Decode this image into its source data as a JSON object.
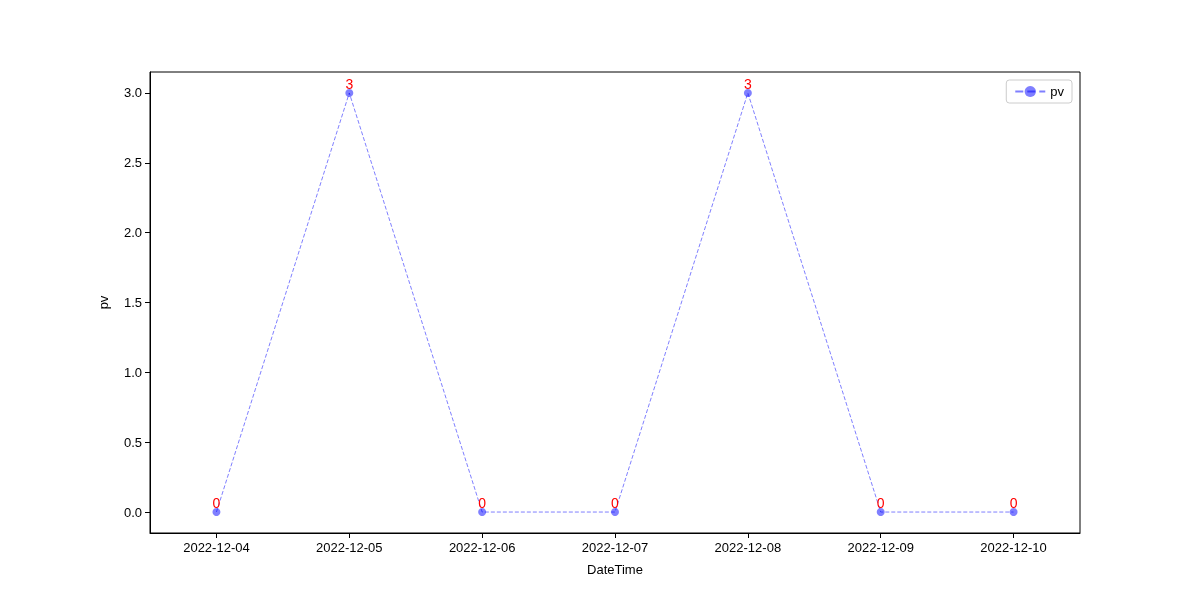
{
  "chart_data": {
    "type": "line",
    "xlabel": "DateTime",
    "ylabel": "pv",
    "categories": [
      "2022-12-04",
      "2022-12-05",
      "2022-12-06",
      "2022-12-07",
      "2022-12-08",
      "2022-12-09",
      "2022-12-10"
    ],
    "series": [
      {
        "name": "pv",
        "color": "#0000ff",
        "values": [
          0,
          3,
          0,
          0,
          3,
          0,
          0
        ]
      }
    ],
    "ylim": [
      -0.15,
      3.15
    ],
    "yticks": [
      {
        "value": 0,
        "label": "0.0"
      },
      {
        "value": 0.5,
        "label": "0.5"
      },
      {
        "value": 1,
        "label": "1.0"
      },
      {
        "value": 1.5,
        "label": "1.5"
      },
      {
        "value": 2,
        "label": "2.0"
      },
      {
        "value": 2.5,
        "label": "2.5"
      },
      {
        "value": 3,
        "label": "3.0"
      }
    ],
    "data_labels": true,
    "marker": "circle",
    "line_style": "dashed",
    "legend": "top right",
    "grid": false
  }
}
